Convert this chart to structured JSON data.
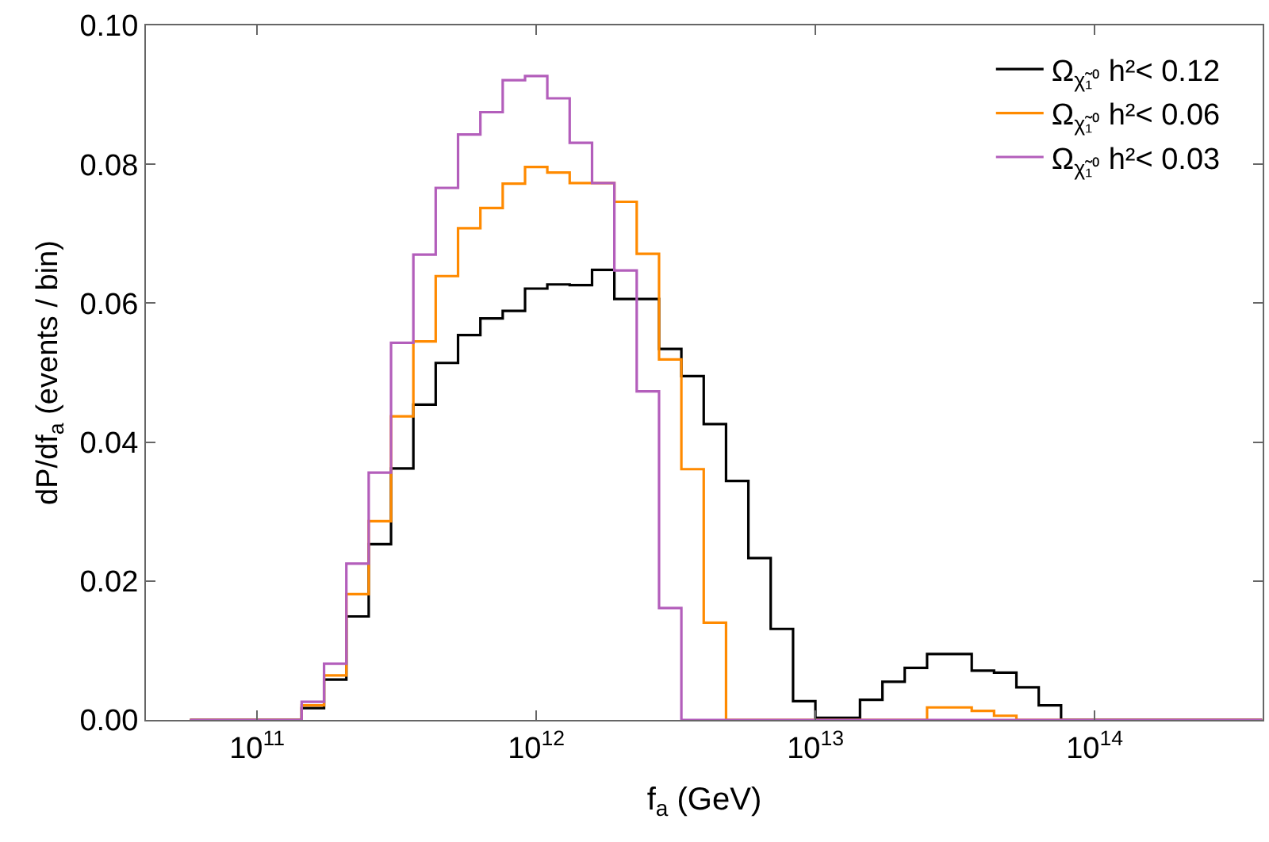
{
  "chart_data": {
    "type": "histogram",
    "xlabel": "f$_{a}$ (GeV)",
    "ylabel": "dP/df$_{a}$ (events / bin)",
    "log": "x",
    "xlim": [
      40000000000.0,
      400000000000000.0
    ],
    "ylim": [
      0,
      0.1
    ],
    "xticks": [
      {
        "value": 100000000000.0,
        "label": "10$^{11}$"
      },
      {
        "value": 1000000000000.0,
        "label": "10$^{12}$"
      },
      {
        "value": 10000000000000.0,
        "label": "10$^{13}$"
      },
      {
        "value": 100000000000000.0,
        "label": "10$^{14}$"
      }
    ],
    "yticks": [
      {
        "value": 0,
        "label": "0.00"
      },
      {
        "value": 0.02,
        "label": "0.02"
      },
      {
        "value": 0.04,
        "label": "0.04"
      },
      {
        "value": 0.06,
        "label": "0.06"
      },
      {
        "value": 0.08,
        "label": "0.08"
      },
      {
        "value": 0.1,
        "label": "0.10"
      }
    ],
    "legend": "top right",
    "bins": [
      57540000000.0,
      69180000000.0,
      83180000000.0,
      100000000000.0,
      120200000000.0,
      144500000000.0,
      173800000000.0,
      208900000000.0,
      251200000000.0,
      302000000000.0,
      363100000000.0,
      436500000000.0,
      524800000000.0,
      631000000000.0,
      758600000000.0,
      912000000000.0,
      1096000000000.0,
      1318000000000.0,
      1585000000000.0,
      1905000000000.0,
      2291000000000.0,
      2754000000000.0,
      3311000000000.0,
      3981000000000.0,
      4786000000000.0,
      5754000000000.0,
      6918000000000.0,
      8318000000000.0,
      10000000000000.0,
      12020000000000.0,
      14450000000000.0,
      17380000000000.0,
      20890000000000.0,
      25120000000000.0,
      30200000000000.0,
      36310000000000.0,
      43650000000000.0,
      52480000000000.0,
      63100000000000.0,
      75860000000000.0,
      91200000000000.0,
      109600000000000.0,
      131800000000000.0,
      158500000000000.0,
      190500000000000.0,
      229100000000000.0,
      275400000000000.0,
      331100000000000.0,
      398100000000000.0
    ],
    "series": [
      {
        "name": "Ω$_{χ̃₁⁰}$ h²< 0.12",
        "color": "#000000",
        "values": [
          0,
          0,
          0,
          0,
          0,
          0.0017,
          0.0058,
          0.0149,
          0.0253,
          0.0362,
          0.0454,
          0.0514,
          0.0554,
          0.0578,
          0.0589,
          0.0621,
          0.0627,
          0.0626,
          0.0648,
          0.0606,
          0.0606,
          0.0534,
          0.0495,
          0.0426,
          0.0344,
          0.0233,
          0.0131,
          0.0027,
          0.0003,
          0.0003,
          0.0029,
          0.0055,
          0.0075,
          0.0095,
          0.0095,
          0.0071,
          0.0068,
          0.0047,
          0.0021,
          0,
          0,
          0,
          0,
          0,
          0,
          0,
          0,
          0
        ]
      },
      {
        "name": "Ω$_{χ̃₁⁰}$ h²< 0.06",
        "color": "#ff8a00",
        "values": [
          0,
          0,
          0,
          0,
          0,
          0.0021,
          0.0064,
          0.0181,
          0.0286,
          0.0437,
          0.0545,
          0.0639,
          0.0708,
          0.0737,
          0.0772,
          0.0796,
          0.0788,
          0.0773,
          0.0773,
          0.0746,
          0.0671,
          0.0519,
          0.0361,
          0.014,
          0,
          0,
          0,
          0,
          0,
          0,
          0,
          0,
          0,
          0.0018,
          0.0018,
          0.0013,
          0.0006,
          0,
          0,
          0,
          0,
          0,
          0,
          0,
          0,
          0,
          0,
          0
        ]
      },
      {
        "name": "Ω$_{χ̃₁⁰}$ h²< 0.03",
        "color": "#b35ebb",
        "values": [
          0,
          0,
          0,
          0,
          0,
          0.0026,
          0.0081,
          0.0225,
          0.0356,
          0.0543,
          0.067,
          0.0766,
          0.0843,
          0.0875,
          0.0921,
          0.0927,
          0.0895,
          0.0831,
          0.0773,
          0.0647,
          0.0473,
          0.0161,
          0,
          0,
          0,
          0,
          0,
          0,
          0,
          0,
          0,
          0,
          0,
          0,
          0,
          0,
          0,
          0,
          0,
          0,
          0,
          0,
          0,
          0,
          0,
          0,
          0,
          0
        ]
      }
    ]
  }
}
